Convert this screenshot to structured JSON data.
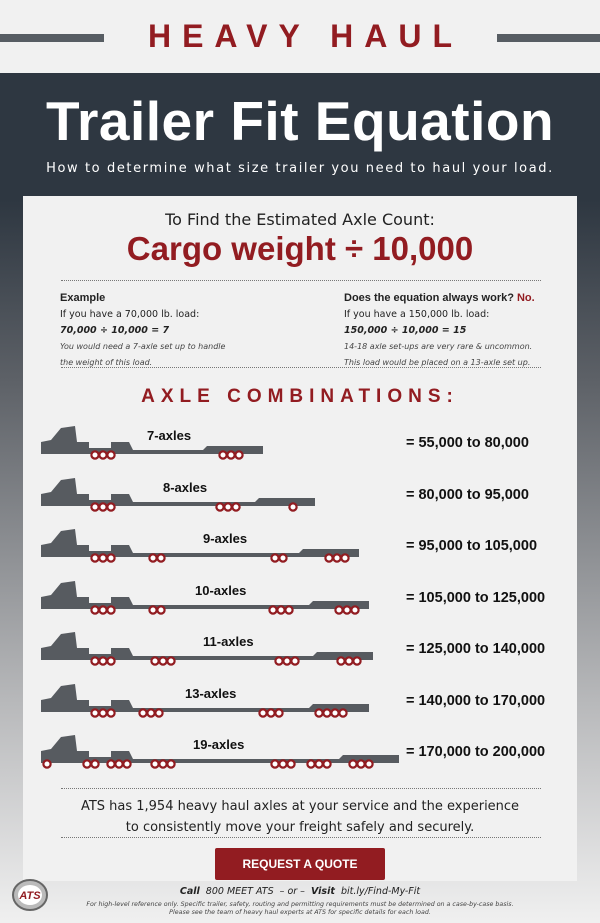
{
  "banner": {
    "title": "HEAVY HAUL"
  },
  "header": {
    "title": "Trailer Fit Equation",
    "subtitle": "How to determine what size trailer you need to haul your load."
  },
  "formula": {
    "intro": "To Find the Estimated Axle Count:",
    "equation": "Cargo weight ÷ 10,000"
  },
  "example": {
    "heading": "Example",
    "line1": "If you have a 70,000 lb. load:",
    "equation": "70,000 ÷ 10,000 = 7",
    "note1": "You would need a 7-axle set up to  handle",
    "note2": "the weight of this load."
  },
  "exception": {
    "heading": "Does the equation always work?",
    "answer": "No.",
    "line1": "If you have a 150,000 lb. load:",
    "equation": "150,000 ÷ 10,000 = 15",
    "note1": "14-18 axle set-ups are very rare & uncommon.",
    "note2": "This load would be placed on a 13-axle set up."
  },
  "axle_section": {
    "title": "AXLE COMBINATIONS:"
  },
  "combinations": [
    {
      "label": "7-axles",
      "range": "= 55,000 to 80,000"
    },
    {
      "label": "8-axles",
      "range": "= 80,000 to 95,000"
    },
    {
      "label": "9-axles",
      "range": "= 95,000 to 105,000"
    },
    {
      "label": "10-axles",
      "range": "= 105,000 to 125,000"
    },
    {
      "label": "11-axles",
      "range": "= 125,000 to 140,000"
    },
    {
      "label": "13-axles",
      "range": "= 140,000 to 170,000"
    },
    {
      "label": "19-axles",
      "range": "= 170,000 to 200,000"
    }
  ],
  "closing": {
    "line1": "ATS has 1,954 heavy haul axles at your service and the experience",
    "line2": "to consistently move your freight safely and securely."
  },
  "cta": {
    "label": "REQUEST A QUOTE"
  },
  "contact": {
    "call_label": "Call",
    "phone": "800 MEET ATS",
    "or": "– or –",
    "visit_label": "Visit",
    "url": "bit.ly/Find-My-Fit"
  },
  "disclaimer": {
    "line1": "For high-level reference only. Specific trailer, safety, routing and permitting requirements must be determined on a case-by-case basis.",
    "line2": "Please see the team of heavy haul experts at ATS for specific details for each load."
  },
  "logo": {
    "text": "ATS"
  },
  "colors": {
    "brand_red": "#921c21",
    "slate": "#2e3741",
    "truck_gray": "#575b60"
  }
}
